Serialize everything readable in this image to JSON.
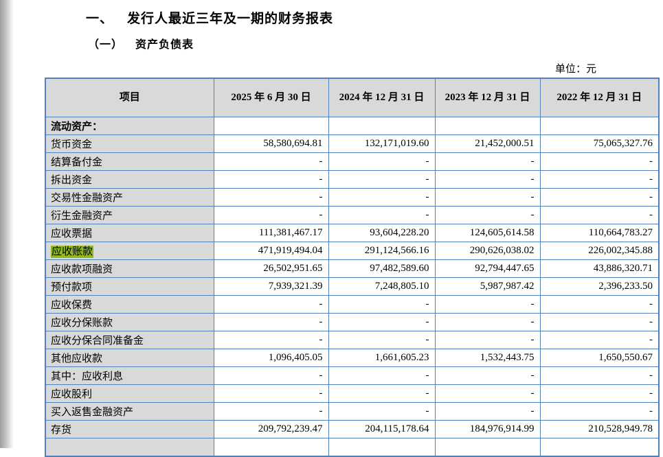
{
  "page": {
    "title_number": "一、",
    "title": "发行人最近三年及一期的财务报表",
    "subtitle_number": "（一）",
    "subtitle": "资产负债表",
    "unit_label": "单位：元"
  },
  "colors": {
    "table_border": "#4f81bd",
    "header_bg": "#d9d9d9",
    "highlight": "#8fb821"
  },
  "table": {
    "columns": [
      "项目",
      "2025 年 6 月 30 日",
      "2024 年 12 月 31 日",
      "2023 年 12 月 31 日",
      "2022 年 12 月 31 日"
    ],
    "rows": [
      {
        "label": "流动资产：",
        "bold": true,
        "highlight": false,
        "values": [
          "",
          "",
          "",
          ""
        ]
      },
      {
        "label": "货币资金",
        "bold": false,
        "highlight": false,
        "values": [
          "58,580,694.81",
          "132,171,019.60",
          "21,452,000.51",
          "75,065,327.76"
        ]
      },
      {
        "label": "结算备付金",
        "bold": false,
        "highlight": false,
        "values": [
          "-",
          "-",
          "-",
          "-"
        ]
      },
      {
        "label": "拆出资金",
        "bold": false,
        "highlight": false,
        "values": [
          "-",
          "-",
          "-",
          "-"
        ]
      },
      {
        "label": "交易性金融资产",
        "bold": false,
        "highlight": false,
        "values": [
          "-",
          "-",
          "-",
          "-"
        ]
      },
      {
        "label": "衍生金融资产",
        "bold": false,
        "highlight": false,
        "values": [
          "-",
          "-",
          "-",
          "-"
        ]
      },
      {
        "label": "应收票据",
        "bold": false,
        "highlight": false,
        "values": [
          "111,381,467.17",
          "93,604,228.20",
          "124,605,614.58",
          "110,664,783.27"
        ]
      },
      {
        "label": "应收账款",
        "bold": false,
        "highlight": true,
        "values": [
          "471,919,494.04",
          "291,124,566.16",
          "290,626,038.02",
          "226,002,345.88"
        ]
      },
      {
        "label": "应收款项融资",
        "bold": false,
        "highlight": false,
        "values": [
          "26,502,951.65",
          "97,482,589.60",
          "92,794,447.65",
          "43,886,320.71"
        ]
      },
      {
        "label": "预付款项",
        "bold": false,
        "highlight": false,
        "values": [
          "7,939,321.39",
          "7,248,805.10",
          "5,987,987.42",
          "2,396,233.50"
        ]
      },
      {
        "label": "应收保费",
        "bold": false,
        "highlight": false,
        "values": [
          "-",
          "-",
          "-",
          "-"
        ]
      },
      {
        "label": "应收分保账款",
        "bold": false,
        "highlight": false,
        "values": [
          "-",
          "-",
          "-",
          "-"
        ]
      },
      {
        "label": "应收分保合同准备金",
        "bold": false,
        "highlight": false,
        "values": [
          "-",
          "-",
          "-",
          "-"
        ]
      },
      {
        "label": "其他应收款",
        "bold": false,
        "highlight": false,
        "values": [
          "1,096,405.05",
          "1,661,605.23",
          "1,532,443.75",
          "1,650,550.67"
        ]
      },
      {
        "label": "其中：应收利息",
        "bold": false,
        "highlight": false,
        "values": [
          "-",
          "-",
          "-",
          "-"
        ]
      },
      {
        "label": "应收股利",
        "bold": false,
        "highlight": false,
        "values": [
          "-",
          "-",
          "-",
          "-"
        ]
      },
      {
        "label": "买入返售金融资产",
        "bold": false,
        "highlight": false,
        "values": [
          "-",
          "-",
          "-",
          "-"
        ]
      },
      {
        "label": "存货",
        "bold": false,
        "highlight": false,
        "values": [
          "209,792,239.47",
          "204,115,178.64",
          "184,976,914.99",
          "210,528,949.78"
        ]
      },
      {
        "label": "",
        "bold": false,
        "highlight": false,
        "values": [
          "",
          "",
          "",
          ""
        ]
      }
    ]
  }
}
